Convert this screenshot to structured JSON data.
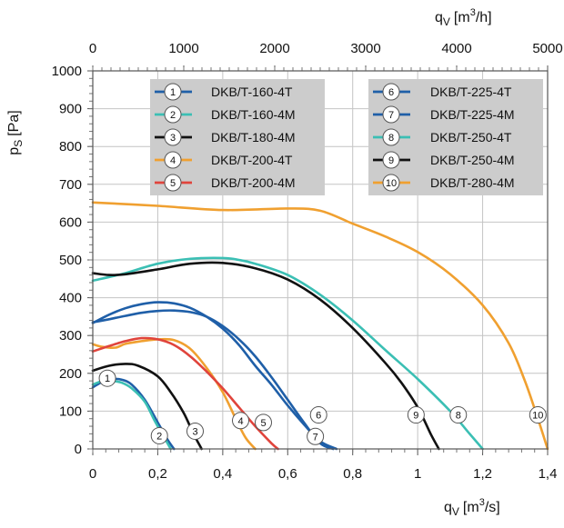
{
  "chart_data": {
    "type": "line",
    "ylabel": "p",
    "ylabel_sub": "S",
    "ylabel_unit": "[Pa]",
    "xlabel": "q",
    "xlabel_sub": "V",
    "xlabel_unit": "[m",
    "xlabel_sup": "3",
    "xlabel_unit_end": "/s]",
    "x2label": "q",
    "x2label_sub": "V",
    "x2label_unit": "[m",
    "x2label_sup": "3",
    "x2label_unit_end": "/h]",
    "xlim": [
      0,
      1.4
    ],
    "ylim": [
      0,
      1000
    ],
    "x2lim": [
      0,
      5000
    ],
    "x_ticks": [
      "0",
      "0,2",
      "0,4",
      "0,6",
      "0,8",
      "1",
      "1,2",
      "1,4"
    ],
    "y_ticks": [
      "0",
      "100",
      "200",
      "300",
      "400",
      "500",
      "600",
      "700",
      "800",
      "900",
      "1000"
    ],
    "x2_ticks": [
      "0",
      "1000",
      "2000",
      "3000",
      "4000",
      "5000"
    ],
    "grid": true,
    "legend_placement": "top",
    "series": [
      {
        "marker": "1",
        "name": "DKB/T-160-4T",
        "color": "#1f5fa8",
        "x": [
          0,
          0.03,
          0.06,
          0.09,
          0.12,
          0.16,
          0.2,
          0.23,
          0.25
        ],
        "y": [
          163,
          178,
          185,
          183,
          170,
          130,
          70,
          25,
          0
        ]
      },
      {
        "marker": "2",
        "name": "DKB/T-160-4M",
        "color": "#3bbfb4",
        "x": [
          0,
          0.03,
          0.06,
          0.09,
          0.12,
          0.16,
          0.19,
          0.22,
          0.24
        ],
        "y": [
          170,
          180,
          180,
          175,
          160,
          125,
          75,
          30,
          0
        ]
      },
      {
        "marker": "3",
        "name": "DKB/T-180-4M",
        "color": "#111111",
        "x": [
          0,
          0.05,
          0.1,
          0.14,
          0.2,
          0.24,
          0.28,
          0.31,
          0.335
        ],
        "y": [
          207,
          220,
          225,
          220,
          192,
          150,
          95,
          40,
          0
        ]
      },
      {
        "marker": "4",
        "name": "DKB/T-200-4T",
        "color": "#f0a030",
        "x": [
          0,
          0.03,
          0.07,
          0.1,
          0.15,
          0.2,
          0.25,
          0.3,
          0.35,
          0.4,
          0.44,
          0.47,
          0.5
        ],
        "y": [
          277,
          270,
          268,
          278,
          285,
          290,
          288,
          265,
          215,
          150,
          80,
          30,
          0
        ]
      },
      {
        "marker": "5",
        "name": "DKB/T-200-4M",
        "color": "#e0443c",
        "x": [
          0,
          0.05,
          0.1,
          0.15,
          0.2,
          0.25,
          0.3,
          0.35,
          0.4,
          0.45,
          0.5,
          0.55,
          0.57
        ],
        "y": [
          258,
          272,
          285,
          293,
          290,
          275,
          245,
          205,
          160,
          110,
          60,
          15,
          0
        ]
      },
      {
        "marker": "6",
        "name": "DKB/T-225-4T",
        "color": "#1f5fa8",
        "x": [
          0,
          0.05,
          0.1,
          0.15,
          0.2,
          0.25,
          0.3,
          0.35,
          0.4,
          0.45,
          0.5,
          0.55,
          0.6,
          0.65,
          0.7,
          0.75
        ],
        "y": [
          333,
          355,
          372,
          383,
          388,
          385,
          373,
          350,
          318,
          275,
          220,
          170,
          115,
          65,
          20,
          0
        ]
      },
      {
        "marker": "7",
        "name": "DKB/T-225-4M",
        "color": "#1f5fa8",
        "x": [
          0,
          0.05,
          0.1,
          0.15,
          0.2,
          0.25,
          0.3,
          0.35,
          0.4,
          0.45,
          0.5,
          0.55,
          0.6,
          0.65,
          0.7,
          0.74
        ],
        "y": [
          335,
          343,
          352,
          360,
          365,
          366,
          362,
          350,
          325,
          290,
          245,
          190,
          130,
          70,
          15,
          0
        ]
      },
      {
        "marker": "8",
        "name": "DKB/T-250-4T",
        "color": "#3bbfb4",
        "x": [
          0,
          0.1,
          0.2,
          0.3,
          0.4,
          0.45,
          0.5,
          0.6,
          0.7,
          0.8,
          0.9,
          1.0,
          1.1,
          1.16,
          1.2
        ],
        "y": [
          445,
          465,
          490,
          503,
          505,
          500,
          490,
          460,
          408,
          340,
          262,
          185,
          100,
          40,
          0
        ]
      },
      {
        "marker": "9",
        "name": "DKB/T-250-4M",
        "color": "#111111",
        "x": [
          0,
          0.05,
          0.1,
          0.2,
          0.3,
          0.4,
          0.5,
          0.6,
          0.7,
          0.8,
          0.9,
          0.95,
          1.0,
          1.04,
          1.065
        ],
        "y": [
          465,
          460,
          462,
          475,
          490,
          492,
          478,
          448,
          395,
          320,
          228,
          175,
          110,
          40,
          0
        ]
      },
      {
        "marker": "10",
        "name": "DKB/T-280-4M",
        "color": "#f0a030",
        "x": [
          0,
          0.2,
          0.4,
          0.6,
          0.7,
          0.8,
          0.9,
          1.0,
          1.1,
          1.2,
          1.28,
          1.33,
          1.37,
          1.4
        ],
        "y": [
          652,
          643,
          632,
          636,
          630,
          596,
          562,
          521,
          462,
          380,
          280,
          180,
          80,
          0
        ]
      }
    ],
    "label_markers": [
      {
        "text": "1",
        "x": 0.045,
        "y": 187
      },
      {
        "text": "2",
        "x": 0.205,
        "y": 35
      },
      {
        "text": "3",
        "x": 0.315,
        "y": 47
      },
      {
        "text": "4",
        "x": 0.455,
        "y": 75
      },
      {
        "text": "5",
        "x": 0.525,
        "y": 70
      },
      {
        "text": "6",
        "x": 0.695,
        "y": 90
      },
      {
        "text": "7",
        "x": 0.685,
        "y": 33
      },
      {
        "text": "8",
        "x": 1.125,
        "y": 90
      },
      {
        "text": "9",
        "x": 0.995,
        "y": 90
      },
      {
        "text": "10",
        "x": 1.37,
        "y": 90
      }
    ]
  }
}
